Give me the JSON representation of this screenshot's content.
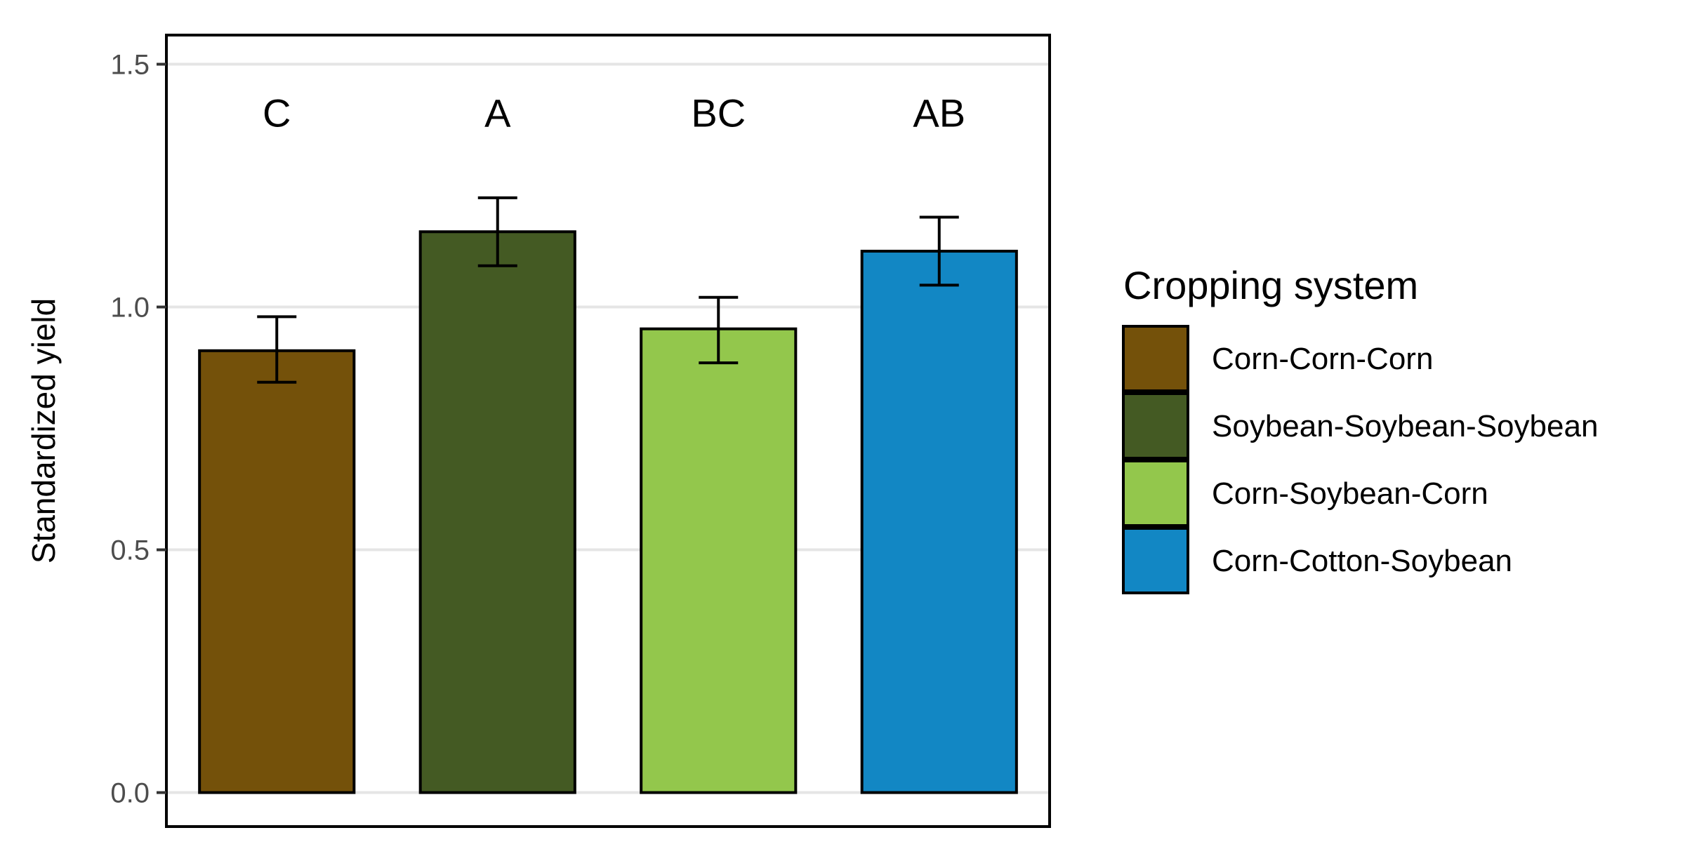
{
  "chart_data": {
    "type": "bar",
    "categories": [
      "Corn-Corn-Corn",
      "Soybean-Soybean-Soybean",
      "Corn-Soybean-Corn",
      "Corn-Cotton-Soybean"
    ],
    "values": [
      0.91,
      1.155,
      0.955,
      1.115
    ],
    "error_low": [
      0.845,
      1.085,
      0.885,
      1.045
    ],
    "error_high": [
      0.98,
      1.225,
      1.02,
      1.185
    ],
    "significance_letters": [
      "C",
      "A",
      "BC",
      "AB"
    ],
    "colors": [
      "#74510a",
      "#445a23",
      "#93c74c",
      "#1287c4"
    ],
    "ylabel": "Standardized yield",
    "xlabel": "",
    "ylim": [
      -0.07,
      1.56
    ],
    "yticks": [
      0.0,
      0.5,
      1.0,
      1.5
    ],
    "ytick_labels": [
      "0.0",
      "0.5",
      "1.0",
      "1.5"
    ],
    "grid": "horizontal",
    "legend": {
      "title": "Cropping system",
      "placement": "right",
      "items": [
        "Corn-Corn-Corn",
        "Soybean-Soybean-Soybean",
        "Corn-Soybean-Corn",
        "Corn-Cotton-Soybean"
      ]
    }
  }
}
